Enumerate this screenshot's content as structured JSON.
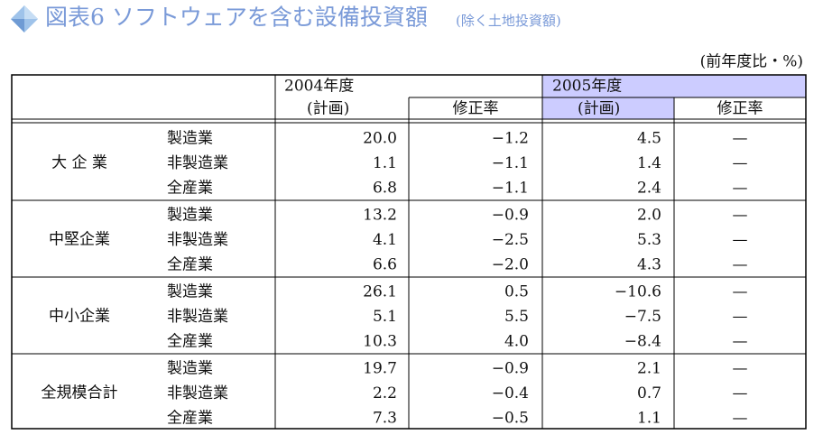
{
  "header": {
    "title": "図表6 ソフトウェアを含む設備投資額",
    "subtitle": "(除く土地投資額)",
    "unit": "(前年度比・%)"
  },
  "table": {
    "year_headers": [
      "2004年度",
      "2005年度"
    ],
    "sub_headers": [
      "(計画)",
      "修正率",
      "(計画)",
      "修正率"
    ],
    "groups": [
      {
        "label": "大 企 業",
        "rows": [
          [
            "製造業",
            "20.0",
            "−1.2",
            "4.5",
            "—"
          ],
          [
            "非製造業",
            "1.1",
            "−1.1",
            "1.4",
            "—"
          ],
          [
            "全産業",
            "6.8",
            "−1.1",
            "2.4",
            "—"
          ]
        ]
      },
      {
        "label": "中堅企業",
        "rows": [
          [
            "製造業",
            "13.2",
            "−0.9",
            "2.0",
            "—"
          ],
          [
            "非製造業",
            "4.1",
            "−2.5",
            "5.3",
            "—"
          ],
          [
            "全産業",
            "6.6",
            "−2.0",
            "4.3",
            "—"
          ]
        ]
      },
      {
        "label": "中小企業",
        "rows": [
          [
            "製造業",
            "26.1",
            "0.5",
            "−10.6",
            "—"
          ],
          [
            "非製造業",
            "5.1",
            "5.5",
            "−7.5",
            "—"
          ],
          [
            "全産業",
            "10.3",
            "4.0",
            "−8.4",
            "—"
          ]
        ]
      },
      {
        "label": "全規模合計",
        "rows": [
          [
            "製造業",
            "19.7",
            "−0.9",
            "2.1",
            "—"
          ],
          [
            "非製造業",
            "2.2",
            "−0.4",
            "0.7",
            "—"
          ],
          [
            "全産業",
            "7.3",
            "−0.5",
            "1.1",
            "—"
          ]
        ]
      }
    ]
  }
}
